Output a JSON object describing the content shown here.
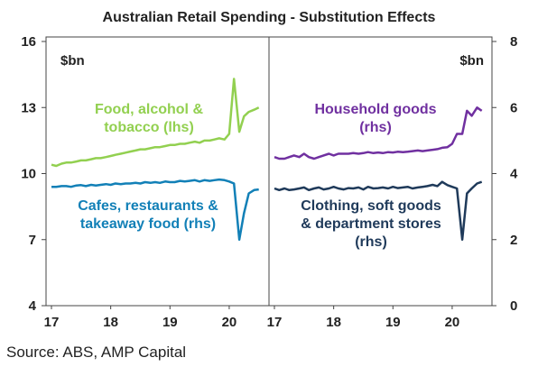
{
  "title": "Australian Retail Spending - Substitution Effects",
  "source": "Source: ABS, AMP Capital",
  "chart_data": [
    {
      "type": "line",
      "panel": "left",
      "ylabel": "$bn",
      "ylim_lhs": [
        4,
        16
      ],
      "yticks_lhs": [
        "4",
        "7",
        "10",
        "13",
        "16"
      ],
      "ylim_rhs": [
        0,
        8
      ],
      "xlim": [
        2017,
        2020.58
      ],
      "xticks": [
        "17",
        "18",
        "19",
        "20"
      ],
      "grid": false,
      "series": [
        {
          "name": "Food, alcohol & tobacco (lhs)",
          "label_lines": [
            "Food, alcohol &",
            "tobacco (lhs)"
          ],
          "axis": "lhs",
          "color": "#92d050",
          "x": [
            2017.0,
            2017.08,
            2017.17,
            2017.25,
            2017.33,
            2017.42,
            2017.5,
            2017.58,
            2017.67,
            2017.75,
            2017.83,
            2017.92,
            2018.0,
            2018.08,
            2018.17,
            2018.25,
            2018.33,
            2018.42,
            2018.5,
            2018.58,
            2018.67,
            2018.75,
            2018.83,
            2018.92,
            2019.0,
            2019.08,
            2019.17,
            2019.25,
            2019.33,
            2019.42,
            2019.5,
            2019.58,
            2019.67,
            2019.75,
            2019.83,
            2019.92,
            2020.0,
            2020.08,
            2020.17,
            2020.25,
            2020.33,
            2020.42,
            2020.5
          ],
          "y": [
            10.4,
            10.35,
            10.45,
            10.5,
            10.5,
            10.55,
            10.6,
            10.6,
            10.65,
            10.7,
            10.7,
            10.75,
            10.8,
            10.85,
            10.9,
            10.95,
            11.0,
            11.05,
            11.1,
            11.1,
            11.15,
            11.2,
            11.2,
            11.25,
            11.3,
            11.3,
            11.35,
            11.35,
            11.4,
            11.45,
            11.4,
            11.5,
            11.5,
            11.55,
            11.6,
            11.55,
            11.8,
            14.3,
            11.9,
            12.6,
            12.8,
            12.9,
            13.0
          ]
        },
        {
          "name": "Cafes, restaurants & takeaway food (rhs)",
          "label_lines": [
            "Cafes, restaurants &",
            "takeaway food (rhs)"
          ],
          "axis": "rhs",
          "color": "#1280b7",
          "x": [
            2017.0,
            2017.08,
            2017.17,
            2017.25,
            2017.33,
            2017.42,
            2017.5,
            2017.58,
            2017.67,
            2017.75,
            2017.83,
            2017.92,
            2018.0,
            2018.08,
            2018.17,
            2018.25,
            2018.33,
            2018.42,
            2018.5,
            2018.58,
            2018.67,
            2018.75,
            2018.83,
            2018.92,
            2019.0,
            2019.08,
            2019.17,
            2019.25,
            2019.33,
            2019.42,
            2019.5,
            2019.58,
            2019.67,
            2019.75,
            2019.83,
            2019.92,
            2020.0,
            2020.08,
            2020.17,
            2020.25,
            2020.33,
            2020.42,
            2020.5
          ],
          "y": [
            3.6,
            3.6,
            3.62,
            3.62,
            3.6,
            3.64,
            3.65,
            3.62,
            3.66,
            3.64,
            3.66,
            3.68,
            3.66,
            3.7,
            3.68,
            3.7,
            3.7,
            3.72,
            3.7,
            3.74,
            3.72,
            3.74,
            3.72,
            3.76,
            3.74,
            3.74,
            3.78,
            3.76,
            3.78,
            3.8,
            3.76,
            3.8,
            3.78,
            3.8,
            3.82,
            3.8,
            3.76,
            3.7,
            2.0,
            2.8,
            3.4,
            3.5,
            3.52
          ]
        }
      ]
    },
    {
      "type": "line",
      "panel": "right",
      "ylabel": "$bn",
      "ylim": [
        0,
        8
      ],
      "yticks": [
        "0",
        "2",
        "4",
        "6",
        "8"
      ],
      "xlim": [
        2017,
        2020.58
      ],
      "xticks": [
        "17",
        "18",
        "19",
        "20"
      ],
      "grid": false,
      "series": [
        {
          "name": "Household goods (rhs)",
          "label_lines": [
            "Household goods",
            "(rhs)"
          ],
          "axis": "rhs",
          "color": "#7030a0",
          "x": [
            2017.0,
            2017.08,
            2017.17,
            2017.25,
            2017.33,
            2017.42,
            2017.5,
            2017.58,
            2017.67,
            2017.75,
            2017.83,
            2017.92,
            2018.0,
            2018.08,
            2018.17,
            2018.25,
            2018.33,
            2018.42,
            2018.5,
            2018.58,
            2018.67,
            2018.75,
            2018.83,
            2018.92,
            2019.0,
            2019.08,
            2019.17,
            2019.25,
            2019.33,
            2019.42,
            2019.5,
            2019.58,
            2019.67,
            2019.75,
            2019.83,
            2019.92,
            2020.0,
            2020.08,
            2020.17,
            2020.25,
            2020.33,
            2020.42,
            2020.5
          ],
          "y": [
            4.5,
            4.45,
            4.45,
            4.5,
            4.55,
            4.5,
            4.6,
            4.5,
            4.45,
            4.5,
            4.55,
            4.6,
            4.55,
            4.6,
            4.6,
            4.6,
            4.62,
            4.6,
            4.62,
            4.65,
            4.62,
            4.64,
            4.62,
            4.65,
            4.64,
            4.66,
            4.65,
            4.66,
            4.68,
            4.7,
            4.68,
            4.7,
            4.72,
            4.74,
            4.78,
            4.8,
            4.9,
            5.2,
            5.2,
            5.9,
            5.75,
            6.0,
            5.9
          ]
        },
        {
          "name": "Clothing, soft goods & department stores (rhs)",
          "label_lines": [
            "Clothing, soft goods",
            "& department stores",
            "(rhs)"
          ],
          "axis": "rhs",
          "color": "#1f3a5a",
          "x": [
            2017.0,
            2017.08,
            2017.17,
            2017.25,
            2017.33,
            2017.42,
            2017.5,
            2017.58,
            2017.67,
            2017.75,
            2017.83,
            2017.92,
            2018.0,
            2018.08,
            2018.17,
            2018.25,
            2018.33,
            2018.42,
            2018.5,
            2018.58,
            2018.67,
            2018.75,
            2018.83,
            2018.92,
            2019.0,
            2019.08,
            2019.17,
            2019.25,
            2019.33,
            2019.42,
            2019.5,
            2019.58,
            2019.67,
            2019.75,
            2019.83,
            2019.92,
            2020.0,
            2020.08,
            2020.17,
            2020.25,
            2020.33,
            2020.42,
            2020.5
          ],
          "y": [
            3.55,
            3.5,
            3.55,
            3.5,
            3.52,
            3.55,
            3.58,
            3.5,
            3.55,
            3.58,
            3.52,
            3.55,
            3.6,
            3.55,
            3.52,
            3.56,
            3.55,
            3.58,
            3.52,
            3.6,
            3.55,
            3.56,
            3.58,
            3.55,
            3.6,
            3.56,
            3.58,
            3.6,
            3.55,
            3.58,
            3.6,
            3.62,
            3.66,
            3.62,
            3.75,
            3.65,
            3.6,
            3.55,
            2.0,
            3.4,
            3.55,
            3.7,
            3.75
          ]
        }
      ]
    }
  ]
}
